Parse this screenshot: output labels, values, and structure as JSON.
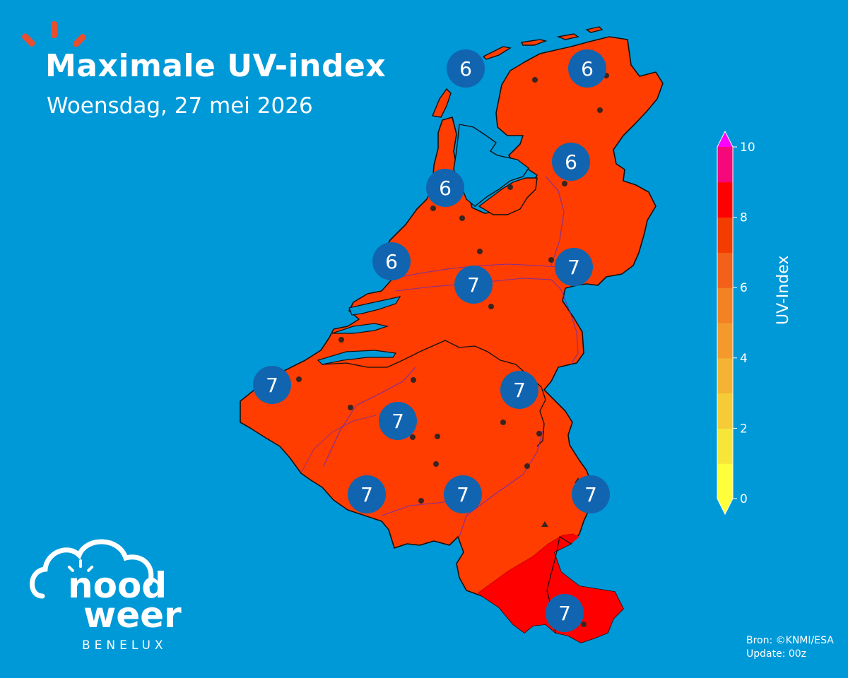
{
  "title": "Maximale UV-index",
  "subtitle": "Woensdag, 27 mei 2026",
  "source": {
    "line1": "Bron: ©KNMI/ESA",
    "line2": "Update: 00z"
  },
  "logo": {
    "word1": "nood",
    "word2": "weer",
    "sub": "BENELUX"
  },
  "colorbar": {
    "label": "UV-Index",
    "ticks": [
      "0",
      "2",
      "4",
      "6",
      "8",
      "10"
    ],
    "colors": [
      "#ffff3c",
      "#f7e53a",
      "#f5cc38",
      "#f4b333",
      "#f49a2c",
      "#f28224",
      "#f2601a",
      "#f23c00",
      "#ff0000",
      "#f5087a",
      "#ff00ff"
    ],
    "map_fill_main": "#ff3d00",
    "map_fill_south": "#ff0000",
    "sea_color": "#0099d8",
    "marker_color": "#1164b0"
  },
  "markers": [
    {
      "id": "texel-north",
      "value": "6"
    },
    {
      "id": "groningen",
      "value": "6"
    },
    {
      "id": "drenthe",
      "value": "6"
    },
    {
      "id": "noord-holland",
      "value": "6"
    },
    {
      "id": "zuid-holland",
      "value": "6"
    },
    {
      "id": "gelderland",
      "value": "7"
    },
    {
      "id": "utrecht-south",
      "value": "7"
    },
    {
      "id": "west-flanders",
      "value": "7"
    },
    {
      "id": "limburg-nl",
      "value": "7"
    },
    {
      "id": "brabant-be",
      "value": "7"
    },
    {
      "id": "hainaut",
      "value": "7"
    },
    {
      "id": "namur",
      "value": "7"
    },
    {
      "id": "liege-east",
      "value": "7"
    },
    {
      "id": "luxembourg",
      "value": "7"
    }
  ]
}
